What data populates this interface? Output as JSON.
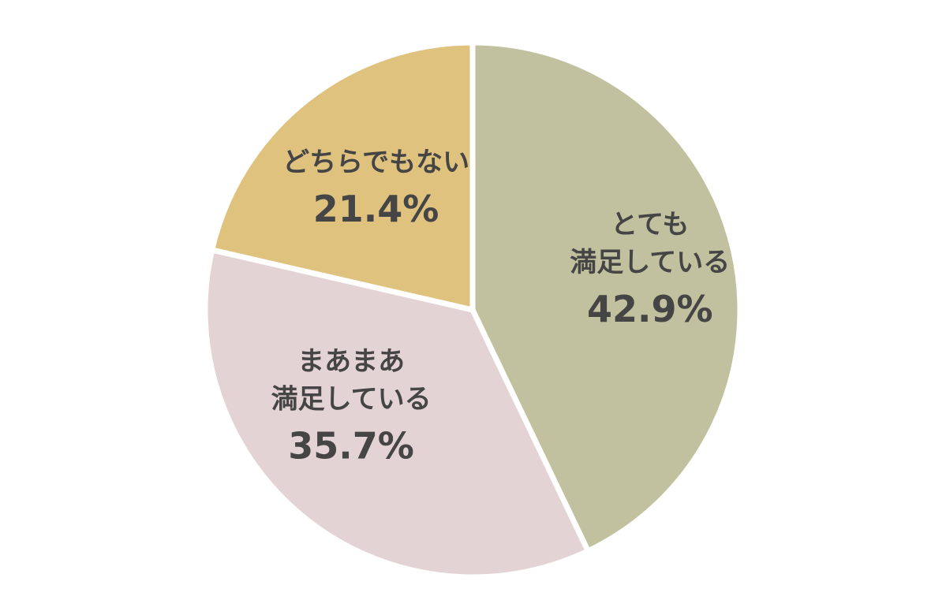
{
  "chart_data": {
    "type": "pie",
    "title": "",
    "start": "12 o'clock",
    "direction": "clockwise",
    "legend": "none (labels inside slices)",
    "colors": {
      "background": "#ffffff",
      "separator": "#ffffff",
      "label_text": "#454545"
    },
    "slices": [
      {
        "label_lines": [
          "とても",
          "満足している"
        ],
        "value": 42.9,
        "value_label": "42.9%",
        "color": "#c2c19f"
      },
      {
        "label_lines": [
          "まあまあ",
          "満足している"
        ],
        "value": 35.7,
        "value_label": "35.7%",
        "color": "#e4d3d4"
      },
      {
        "label_lines": [
          "どちらでもない"
        ],
        "value": 21.4,
        "value_label": "21.4%",
        "color": "#e0c27f"
      }
    ]
  }
}
